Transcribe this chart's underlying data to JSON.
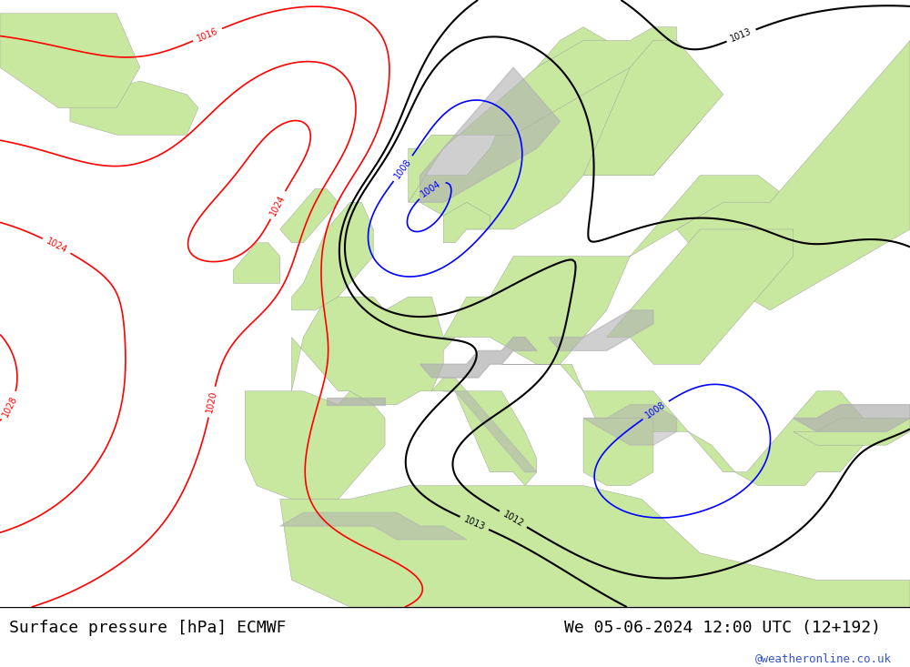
{
  "title_left": "Surface pressure [hPa] ECMWF",
  "title_right": "We 05-06-2024 12:00 UTC (12+192)",
  "watermark": "@weatheronline.co.uk",
  "land_color": "#c8e8a0",
  "sea_color": "#d8d8e8",
  "mountain_color": "#b0b0b0",
  "title_bg": "#ffffff",
  "watermark_color": "#3355cc",
  "fig_width": 10.0,
  "fig_height": 7.33,
  "dpi": 100
}
